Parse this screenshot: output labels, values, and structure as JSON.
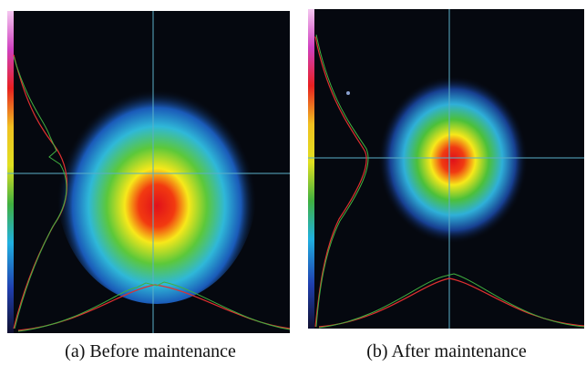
{
  "panels": [
    {
      "caption": "(a) Before maintenance"
    },
    {
      "caption": "(b) After maintenance"
    }
  ]
}
